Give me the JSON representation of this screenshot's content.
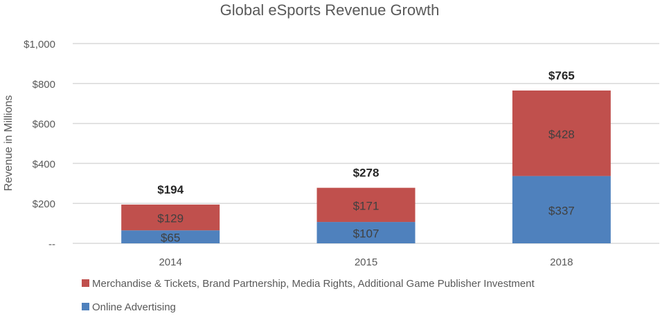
{
  "chart_data": {
    "type": "bar",
    "stacked": true,
    "title": "Global eSports Revenue Growth",
    "xlabel": "",
    "ylabel": "Revenue in Millions",
    "ylim": [
      0,
      1000
    ],
    "yticks": [
      0,
      200,
      400,
      600,
      800,
      1000
    ],
    "ytick_labels": [
      "--",
      "$200",
      "$400",
      "$600",
      "$800",
      "$1,000"
    ],
    "grid": true,
    "legend_position": "bottom-left",
    "categories": [
      "2014",
      "2015",
      "2018"
    ],
    "series": [
      {
        "name": "Online Advertising",
        "color": "#4f81bd",
        "values": [
          65,
          107,
          337
        ],
        "labels": [
          "$65",
          "$107",
          "$337"
        ]
      },
      {
        "name": "Merchandise & Tickets, Brand Partnership, Media Rights, Additional Game Publisher Investment",
        "color": "#c0504d",
        "values": [
          129,
          171,
          428
        ],
        "labels": [
          "$129",
          "$171",
          "$428"
        ]
      }
    ],
    "totals": [
      194,
      278,
      765
    ],
    "total_labels": [
      "$194",
      "$278",
      "$765"
    ]
  }
}
